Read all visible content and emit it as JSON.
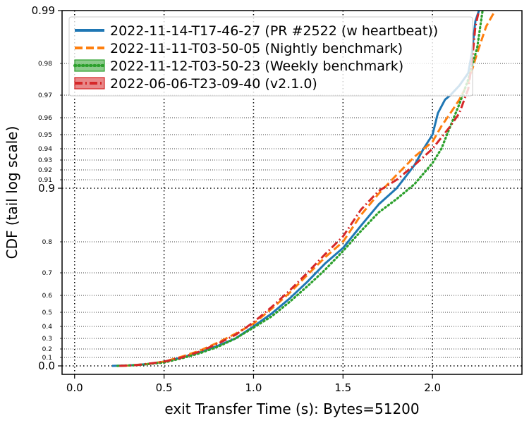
{
  "chart_data": {
    "type": "line",
    "xlabel": "exit Transfer Time (s): Bytes=51200",
    "ylabel": "CDF (tail log scale)",
    "xlim": [
      -0.07,
      2.5
    ],
    "x_ticks": [
      {
        "value": 0.0,
        "label": "0.0"
      },
      {
        "value": 0.5,
        "label": "0.5"
      },
      {
        "value": 1.0,
        "label": "1.0"
      },
      {
        "value": 1.5,
        "label": "1.5"
      },
      {
        "value": 2.0,
        "label": "2.0"
      }
    ],
    "y_scale": "tail log",
    "y_ticks_major": [
      {
        "value": 0.0,
        "label": "0.0"
      },
      {
        "value": 0.9,
        "label": "0.9"
      },
      {
        "value": 0.99,
        "label": "0.99"
      }
    ],
    "y_ticks_minor": [
      {
        "value": 0.1,
        "label": "0.1"
      },
      {
        "value": 0.2,
        "label": "0.2"
      },
      {
        "value": 0.3,
        "label": "0.3"
      },
      {
        "value": 0.4,
        "label": "0.4"
      },
      {
        "value": 0.5,
        "label": "0.5"
      },
      {
        "value": 0.6,
        "label": "0.6"
      },
      {
        "value": 0.7,
        "label": "0.7"
      },
      {
        "value": 0.8,
        "label": "0.8"
      },
      {
        "value": 0.91,
        "label": "0.91"
      },
      {
        "value": 0.92,
        "label": "0.92"
      },
      {
        "value": 0.93,
        "label": "0.93"
      },
      {
        "value": 0.94,
        "label": "0.94"
      },
      {
        "value": 0.95,
        "label": "0.95"
      },
      {
        "value": 0.96,
        "label": "0.96"
      },
      {
        "value": 0.97,
        "label": "0.97"
      },
      {
        "value": 0.98,
        "label": "0.98"
      }
    ],
    "grid": true,
    "legend_position": "top-left",
    "series": [
      {
        "name": "2022-11-14-T17-46-27 (PR #2522 (w heartbeat))",
        "color": "#1f77b4",
        "style": "solid",
        "points": [
          [
            0.21,
            0.0
          ],
          [
            0.3,
            0.005
          ],
          [
            0.4,
            0.02
          ],
          [
            0.5,
            0.05
          ],
          [
            0.6,
            0.1
          ],
          [
            0.7,
            0.16
          ],
          [
            0.8,
            0.23
          ],
          [
            0.9,
            0.3
          ],
          [
            1.0,
            0.4
          ],
          [
            1.1,
            0.49
          ],
          [
            1.2,
            0.58
          ],
          [
            1.3,
            0.66
          ],
          [
            1.4,
            0.73
          ],
          [
            1.5,
            0.78
          ],
          [
            1.6,
            0.83
          ],
          [
            1.7,
            0.87
          ],
          [
            1.8,
            0.9
          ],
          [
            1.9,
            0.925
          ],
          [
            1.95,
            0.94
          ],
          [
            2.0,
            0.95
          ],
          [
            2.03,
            0.962
          ],
          [
            2.07,
            0.968
          ],
          [
            2.1,
            0.97
          ],
          [
            2.15,
            0.973
          ],
          [
            2.2,
            0.977
          ],
          [
            2.22,
            0.982
          ],
          [
            2.24,
            0.988
          ],
          [
            2.26,
            0.992
          ]
        ]
      },
      {
        "name": "2022-11-11-T03-50-05 (Nightly benchmark)",
        "color": "#ff7f0e",
        "style": "dashed",
        "points": [
          [
            0.27,
            0.0
          ],
          [
            0.4,
            0.02
          ],
          [
            0.5,
            0.05
          ],
          [
            0.6,
            0.11
          ],
          [
            0.7,
            0.18
          ],
          [
            0.8,
            0.26
          ],
          [
            0.9,
            0.34
          ],
          [
            1.0,
            0.42
          ],
          [
            1.1,
            0.52
          ],
          [
            1.2,
            0.61
          ],
          [
            1.3,
            0.69
          ],
          [
            1.4,
            0.75
          ],
          [
            1.5,
            0.8
          ],
          [
            1.6,
            0.85
          ],
          [
            1.7,
            0.89
          ],
          [
            1.8,
            0.915
          ],
          [
            1.9,
            0.933
          ],
          [
            2.0,
            0.945
          ],
          [
            2.05,
            0.955
          ],
          [
            2.1,
            0.962
          ],
          [
            2.15,
            0.968
          ],
          [
            2.2,
            0.974
          ],
          [
            2.25,
            0.982
          ],
          [
            2.3,
            0.987
          ],
          [
            2.35,
            0.992
          ]
        ]
      },
      {
        "name": "2022-11-12-T03-50-23 (Weekly benchmark)",
        "color": "#2ca02c",
        "style": "dotted",
        "points": [
          [
            0.24,
            0.0
          ],
          [
            0.35,
            0.01
          ],
          [
            0.5,
            0.04
          ],
          [
            0.6,
            0.09
          ],
          [
            0.7,
            0.15
          ],
          [
            0.8,
            0.22
          ],
          [
            0.9,
            0.3
          ],
          [
            1.0,
            0.39
          ],
          [
            1.1,
            0.47
          ],
          [
            1.2,
            0.56
          ],
          [
            1.3,
            0.64
          ],
          [
            1.4,
            0.71
          ],
          [
            1.5,
            0.77
          ],
          [
            1.6,
            0.82
          ],
          [
            1.7,
            0.855
          ],
          [
            1.8,
            0.88
          ],
          [
            1.9,
            0.905
          ],
          [
            2.0,
            0.927
          ],
          [
            2.05,
            0.94
          ],
          [
            2.1,
            0.955
          ],
          [
            2.15,
            0.966
          ],
          [
            2.2,
            0.975
          ],
          [
            2.25,
            0.983
          ],
          [
            2.28,
            0.99
          ]
        ]
      },
      {
        "name": "2022-06-06-T23-09-40 (v2.1.0)",
        "color": "#d62728",
        "style": "dashdot",
        "points": [
          [
            0.25,
            0.0
          ],
          [
            0.35,
            0.01
          ],
          [
            0.5,
            0.05
          ],
          [
            0.6,
            0.1
          ],
          [
            0.7,
            0.17
          ],
          [
            0.8,
            0.25
          ],
          [
            0.9,
            0.33
          ],
          [
            1.0,
            0.43
          ],
          [
            1.1,
            0.53
          ],
          [
            1.2,
            0.62
          ],
          [
            1.3,
            0.7
          ],
          [
            1.4,
            0.76
          ],
          [
            1.5,
            0.81
          ],
          [
            1.6,
            0.86
          ],
          [
            1.7,
            0.895
          ],
          [
            1.8,
            0.91
          ],
          [
            1.9,
            0.925
          ],
          [
            2.0,
            0.94
          ],
          [
            2.1,
            0.955
          ],
          [
            2.15,
            0.962
          ],
          [
            2.2,
            0.972
          ],
          [
            2.22,
            0.98
          ],
          [
            2.24,
            0.987
          ],
          [
            2.26,
            0.992
          ]
        ]
      }
    ]
  }
}
